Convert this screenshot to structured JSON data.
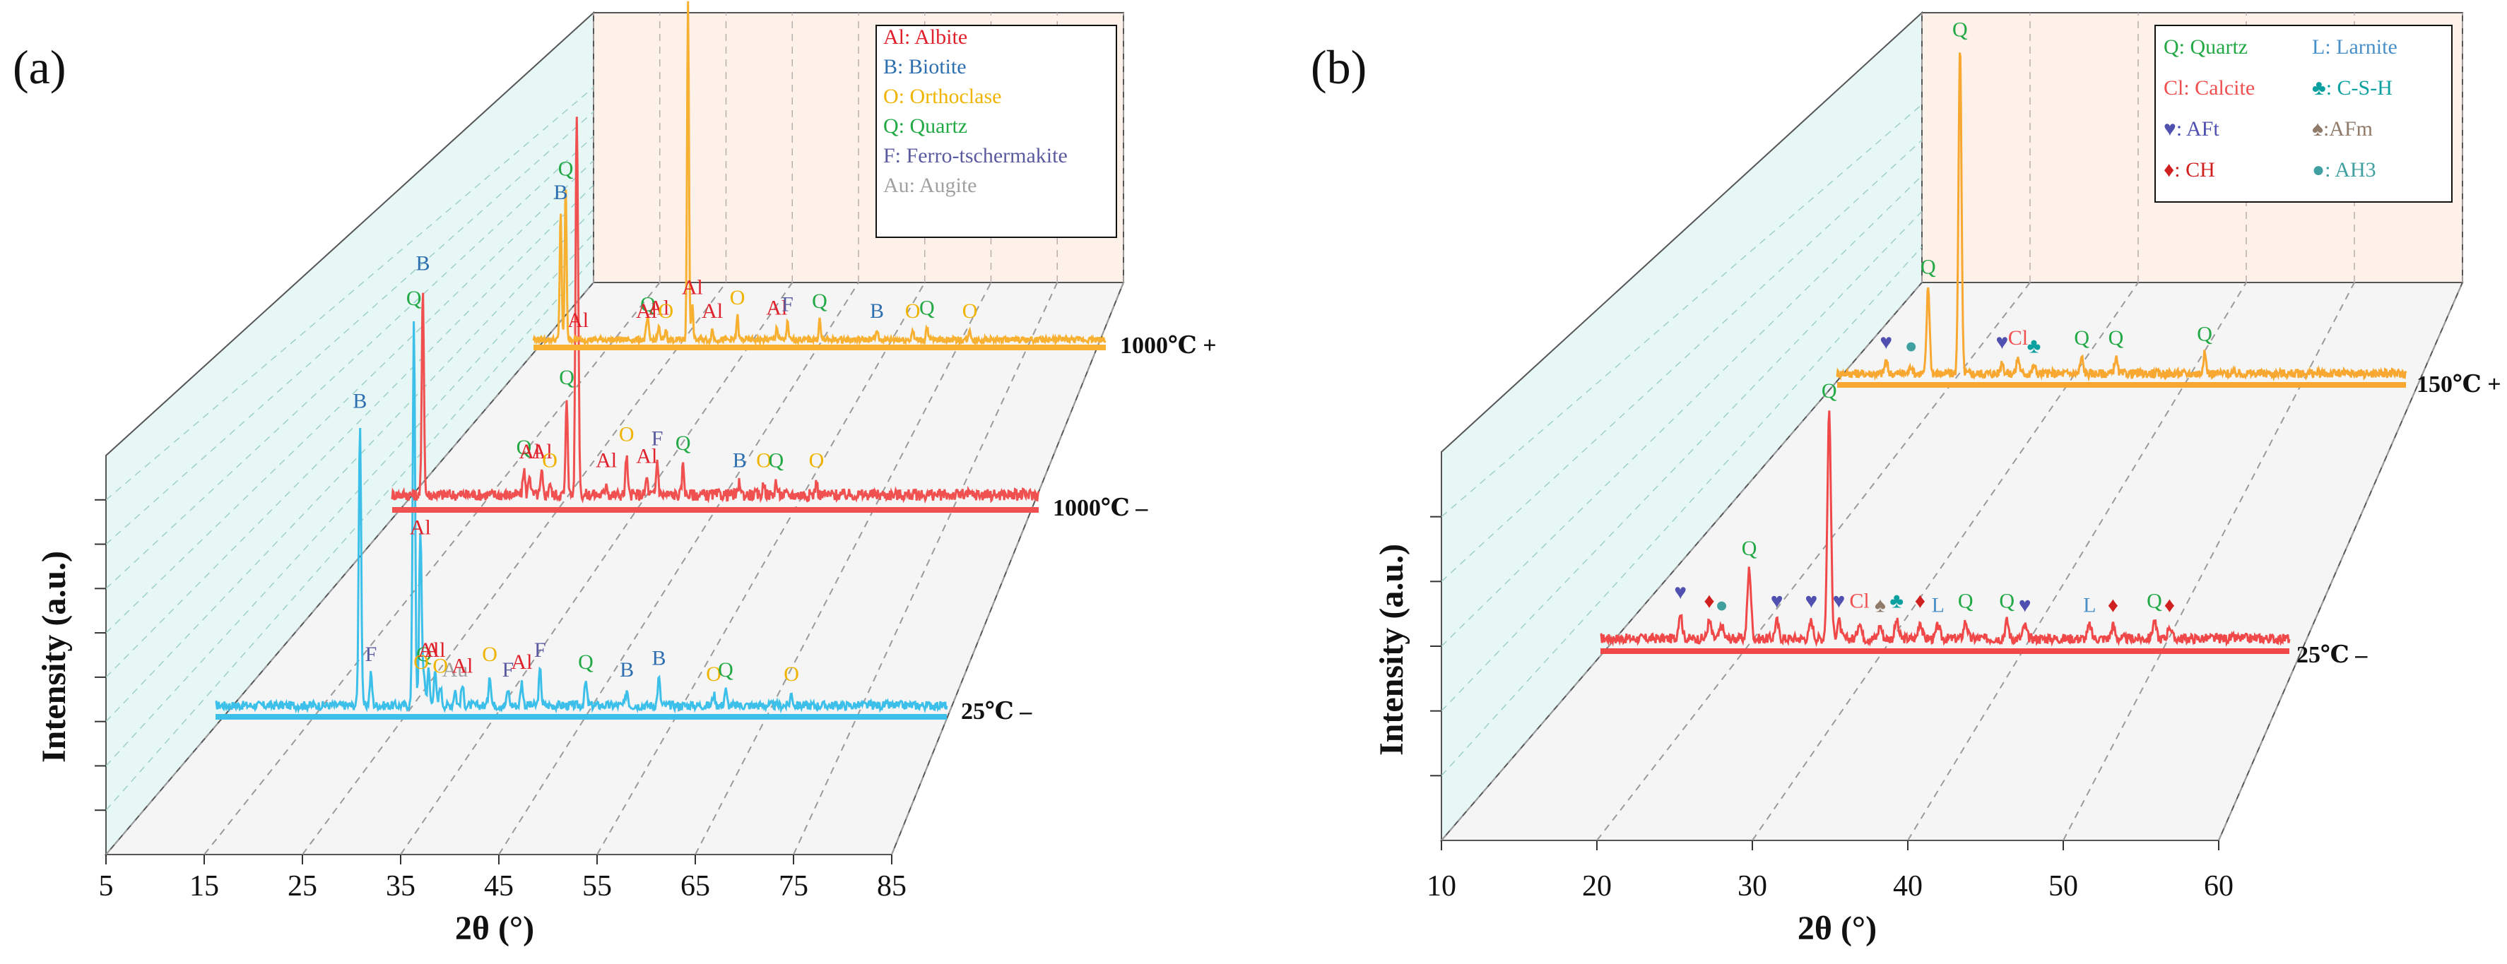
{
  "chart_data": [
    {
      "panel": "(a)",
      "type": "line",
      "title": "",
      "xlabel": "2θ (°)",
      "ylabel": "Intensity (a.u.)",
      "xlim": [
        5,
        85
      ],
      "x_ticks": [
        "5",
        "15",
        "25",
        "35",
        "45",
        "55",
        "65",
        "75",
        "85"
      ],
      "grid": true,
      "legend": {
        "position": "top-right",
        "entries": [
          {
            "symbol": "Al",
            "text": "Al: Albite",
            "color": "#e0202a"
          },
          {
            "symbol": "B",
            "text": "B: Biotite",
            "color": "#2e6fb0"
          },
          {
            "symbol": "O",
            "text": "O: Orthoclase",
            "color": "#f0b400"
          },
          {
            "symbol": "Q",
            "text": "Q: Quartz",
            "color": "#22a845"
          },
          {
            "symbol": "F",
            "text": "F: Ferro-tschermakite",
            "color": "#5a5aa0"
          },
          {
            "symbol": "Au",
            "text": "Au: Augite",
            "color": "#a0a0a0"
          }
        ]
      },
      "series": [
        {
          "name": "25℃ –",
          "color": "#3cc0ea",
          "baseline": 0.05,
          "peaks": [
            {
              "x": 20.8,
              "h": 0.72,
              "label": "B"
            },
            {
              "x": 22.0,
              "h": 0.08,
              "label": "F"
            },
            {
              "x": 27.8,
              "h": 0.08,
              "label": "Q"
            },
            {
              "x": 27.5,
              "h": 0.06,
              "label": "O"
            },
            {
              "x": 28.3,
              "h": 0.09,
              "label": "Al"
            },
            {
              "x": 29.0,
              "h": 0.09,
              "label": "Al"
            },
            {
              "x": 29.6,
              "h": 0.05,
              "label": "O"
            },
            {
              "x": 26.7,
              "h": 0.98,
              "label": "Q"
            },
            {
              "x": 27.4,
              "h": 0.4,
              "label": "Al"
            },
            {
              "x": 31.2,
              "h": 0.04,
              "label": "Au"
            },
            {
              "x": 32.0,
              "h": 0.05,
              "label": "Al"
            },
            {
              "x": 35.0,
              "h": 0.08,
              "label": "O"
            },
            {
              "x": 37.0,
              "h": 0.04,
              "label": "F"
            },
            {
              "x": 38.5,
              "h": 0.06,
              "label": "Al"
            },
            {
              "x": 40.5,
              "h": 0.09,
              "label": "F"
            },
            {
              "x": 45.5,
              "h": 0.06,
              "label": "Q"
            },
            {
              "x": 50.0,
              "h": 0.04,
              "label": "B"
            },
            {
              "x": 53.5,
              "h": 0.07,
              "label": "B"
            },
            {
              "x": 59.5,
              "h": 0.03,
              "label": "O"
            },
            {
              "x": 60.8,
              "h": 0.04,
              "label": "Q"
            },
            {
              "x": 68.0,
              "h": 0.03,
              "label": "O"
            }
          ]
        },
        {
          "name": "1000℃ –",
          "color": "#f05050",
          "baseline": 0.06,
          "peaks": [
            {
              "x": 26.6,
              "h": 0.22,
              "label": "Q"
            },
            {
              "x": 8.8,
              "h": 0.48,
              "label": "B"
            },
            {
              "x": 21.3,
              "h": 0.06,
              "label": "Q"
            },
            {
              "x": 22.0,
              "h": 0.05,
              "label": "Al"
            },
            {
              "x": 23.5,
              "h": 0.05,
              "label": "Al"
            },
            {
              "x": 24.5,
              "h": 0.03,
              "label": "O"
            },
            {
              "x": 27.8,
              "h": 0.74,
              "label": ""
            },
            {
              "x": 28.0,
              "h": 0.35,
              "label": "Al"
            },
            {
              "x": 31.5,
              "h": 0.03,
              "label": "Al"
            },
            {
              "x": 34.0,
              "h": 0.09,
              "label": "O"
            },
            {
              "x": 36.5,
              "h": 0.04,
              "label": "Al"
            },
            {
              "x": 37.8,
              "h": 0.08,
              "label": "F"
            },
            {
              "x": 41.0,
              "h": 0.07,
              "label": "Q"
            },
            {
              "x": 48.0,
              "h": 0.03,
              "label": "B"
            },
            {
              "x": 51.0,
              "h": 0.03,
              "label": "O"
            },
            {
              "x": 52.5,
              "h": 0.03,
              "label": "Q"
            },
            {
              "x": 57.5,
              "h": 0.03,
              "label": "O"
            }
          ]
        },
        {
          "name": "1000℃ +",
          "color": "#f8b030",
          "baseline": 0.04,
          "peaks": [
            {
              "x": 8.8,
              "h": 0.38,
              "label": "B"
            },
            {
              "x": 9.5,
              "h": 0.45,
              "label": "Q"
            },
            {
              "x": 21.0,
              "h": 0.05,
              "label": "Q"
            },
            {
              "x": 20.8,
              "h": 0.03,
              "label": "Al"
            },
            {
              "x": 22.5,
              "h": 0.04,
              "label": "Al"
            },
            {
              "x": 23.5,
              "h": 0.03,
              "label": "O"
            },
            {
              "x": 26.6,
              "h": 1.0,
              "label": "Q"
            },
            {
              "x": 27.2,
              "h": 0.1,
              "label": "Al"
            },
            {
              "x": 30.0,
              "h": 0.03,
              "label": "Al"
            },
            {
              "x": 33.5,
              "h": 0.07,
              "label": "O"
            },
            {
              "x": 39.0,
              "h": 0.04,
              "label": "Al"
            },
            {
              "x": 40.5,
              "h": 0.05,
              "label": "F"
            },
            {
              "x": 45.0,
              "h": 0.06,
              "label": "Q"
            },
            {
              "x": 53.0,
              "h": 0.03,
              "label": "B"
            },
            {
              "x": 58.0,
              "h": 0.03,
              "label": "O"
            },
            {
              "x": 60.0,
              "h": 0.04,
              "label": "Q"
            },
            {
              "x": 66.0,
              "h": 0.03,
              "label": "O"
            }
          ]
        }
      ]
    },
    {
      "panel": "(b)",
      "type": "line",
      "title": "",
      "xlabel": "2θ (°)",
      "ylabel": "Intensity (a.u.)",
      "xlim": [
        10,
        60
      ],
      "x_ticks": [
        "10",
        "20",
        "30",
        "40",
        "50",
        "60"
      ],
      "grid": true,
      "legend": {
        "position": "top-right",
        "entries": [
          {
            "symbol": "Q",
            "text": "Q: Quartz",
            "color": "#22a845"
          },
          {
            "symbol": "L",
            "text": "L: Larnite",
            "color": "#4a90c8"
          },
          {
            "symbol": "Cl",
            "text": "Cl: Calcite",
            "color": "#f05050"
          },
          {
            "symbol": "♣",
            "text": "♣: C-S-H",
            "color": "#0aa0a0"
          },
          {
            "symbol": "♥",
            "text": "♥: AFt",
            "color": "#5050b0"
          },
          {
            "symbol": "♠",
            "text": "♠:AFm",
            "color": "#907a6a"
          },
          {
            "symbol": "♦",
            "text": "♦: CH",
            "color": "#d02020"
          },
          {
            "symbol": "●",
            "text": "●: AH3",
            "color": "#40a0a0"
          }
        ]
      },
      "series": [
        {
          "name": "25℃ –",
          "color": "#f04848",
          "baseline": 0.05,
          "peaks": [
            {
              "x": 15.8,
              "h": 0.06,
              "label": "♥"
            },
            {
              "x": 17.9,
              "h": 0.04,
              "label": "♦"
            },
            {
              "x": 18.8,
              "h": 0.03,
              "label": "●"
            },
            {
              "x": 20.8,
              "h": 0.16,
              "label": "Q"
            },
            {
              "x": 22.8,
              "h": 0.04,
              "label": "♥"
            },
            {
              "x": 25.3,
              "h": 0.04,
              "label": "♥"
            },
            {
              "x": 26.6,
              "h": 0.52,
              "label": "Q"
            },
            {
              "x": 27.3,
              "h": 0.04,
              "label": "♥"
            },
            {
              "x": 28.8,
              "h": 0.04,
              "label": "Cl"
            },
            {
              "x": 30.3,
              "h": 0.03,
              "label": "♠"
            },
            {
              "x": 31.5,
              "h": 0.04,
              "label": "♣"
            },
            {
              "x": 33.2,
              "h": 0.04,
              "label": "♦"
            },
            {
              "x": 34.5,
              "h": 0.03,
              "label": "L"
            },
            {
              "x": 36.5,
              "h": 0.04,
              "label": "Q"
            },
            {
              "x": 39.5,
              "h": 0.04,
              "label": "Q"
            },
            {
              "x": 40.8,
              "h": 0.03,
              "label": "♥"
            },
            {
              "x": 45.5,
              "h": 0.03,
              "label": "L"
            },
            {
              "x": 47.2,
              "h": 0.03,
              "label": "♦"
            },
            {
              "x": 50.2,
              "h": 0.04,
              "label": "Q"
            },
            {
              "x": 51.3,
              "h": 0.03,
              "label": "♦"
            }
          ]
        },
        {
          "name": "150℃ +",
          "color": "#f8a830",
          "baseline": 0.05,
          "peaks": [
            {
              "x": 14.3,
              "h": 0.03,
              "label": "♥"
            },
            {
              "x": 16.5,
              "h": 0.02,
              "label": "●"
            },
            {
              "x": 18.0,
              "h": 0.22,
              "label": "Q"
            },
            {
              "x": 20.8,
              "h": 0.82,
              "label": "Q"
            },
            {
              "x": 24.5,
              "h": 0.03,
              "label": "♥"
            },
            {
              "x": 25.9,
              "h": 0.04,
              "label": "Cl"
            },
            {
              "x": 27.3,
              "h": 0.02,
              "label": "♣"
            },
            {
              "x": 31.5,
              "h": 0.04,
              "label": "Q"
            },
            {
              "x": 34.5,
              "h": 0.04,
              "label": "Q"
            },
            {
              "x": 42.3,
              "h": 0.05,
              "label": "Q"
            }
          ]
        }
      ]
    }
  ]
}
